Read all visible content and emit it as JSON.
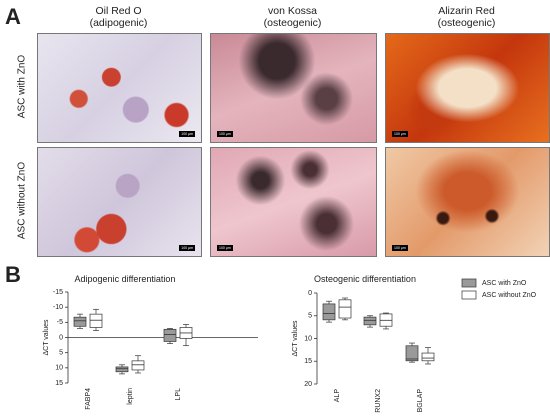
{
  "panel_a": {
    "label": "A",
    "columns": [
      {
        "stain": "Oil Red O",
        "type": "(adipogenic)"
      },
      {
        "stain": "von Kossa",
        "type": "(osteogenic)"
      },
      {
        "stain": "Alizarin Red",
        "type": "(osteogenic)"
      }
    ],
    "rows": [
      "ASC with ZnO",
      "ASC without ZnO"
    ],
    "scale_bar_label": "100 µm"
  },
  "panel_b": {
    "label": "B"
  },
  "chart_data": [
    {
      "type": "box",
      "title": "Adipogenic differentiation",
      "y_label": "ΔCT values",
      "categories": [
        "FABP4",
        "leptin",
        "LPL"
      ],
      "ylim": [
        -15,
        15
      ],
      "y_inverted": true,
      "yticks": [
        -15,
        -10,
        -5,
        0,
        5,
        10,
        15
      ],
      "zero_line": true,
      "series": [
        {
          "color": "#9a9a9a",
          "boxes": [
            {
              "min": -7.7,
              "q1": -6.7,
              "median": -5.5,
              "q3": -3.7,
              "max": -3
            },
            {
              "min": 9,
              "q1": 9.7,
              "median": 10.3,
              "q3": 11.3,
              "max": 12
            },
            {
              "min": -3,
              "q1": -2.7,
              "median": -1,
              "q3": 1.3,
              "max": 2
            }
          ]
        },
        {
          "color": "#ffffff",
          "boxes": [
            {
              "min": -9.3,
              "q1": -7.7,
              "median": -5.7,
              "q3": -3.3,
              "max": -2.3
            },
            {
              "min": 6,
              "q1": 7.7,
              "median": 9,
              "q3": 10.7,
              "max": 11.7
            },
            {
              "min": -4.3,
              "q1": -3.3,
              "median": -1.5,
              "q3": 0.3,
              "max": 2.7
            }
          ]
        }
      ]
    },
    {
      "type": "box",
      "title": "Osteogenic differentiation",
      "y_label": "ΔCT values",
      "categories": [
        "ALP",
        "RUNX2",
        "BGLAP"
      ],
      "ylim": [
        0,
        20
      ],
      "y_inverted": true,
      "yticks": [
        0,
        5,
        10,
        15,
        20
      ],
      "zero_line": false,
      "series": [
        {
          "name": "ASC with ZnO",
          "color": "#9a9a9a",
          "boxes": [
            {
              "min": 1.8,
              "q1": 2.4,
              "median": 4.5,
              "q3": 5.9,
              "max": 6.4
            },
            {
              "min": 5,
              "q1": 5.3,
              "median": 6,
              "q3": 7,
              "max": 7.5
            },
            {
              "min": 11,
              "q1": 11.6,
              "median": 14.5,
              "q3": 14.9,
              "max": 15.2
            }
          ]
        },
        {
          "name": "ASC without ZnO",
          "color": "#ffffff",
          "boxes": [
            {
              "min": 1.1,
              "q1": 1.5,
              "median": 3.1,
              "q3": 5.5,
              "max": 5.9
            },
            {
              "min": 4.4,
              "q1": 4.6,
              "median": 6,
              "q3": 7.3,
              "max": 7.9
            },
            {
              "min": 12,
              "q1": 13.2,
              "median": 14.3,
              "q3": 14.9,
              "max": 15.6
            }
          ]
        }
      ]
    }
  ]
}
